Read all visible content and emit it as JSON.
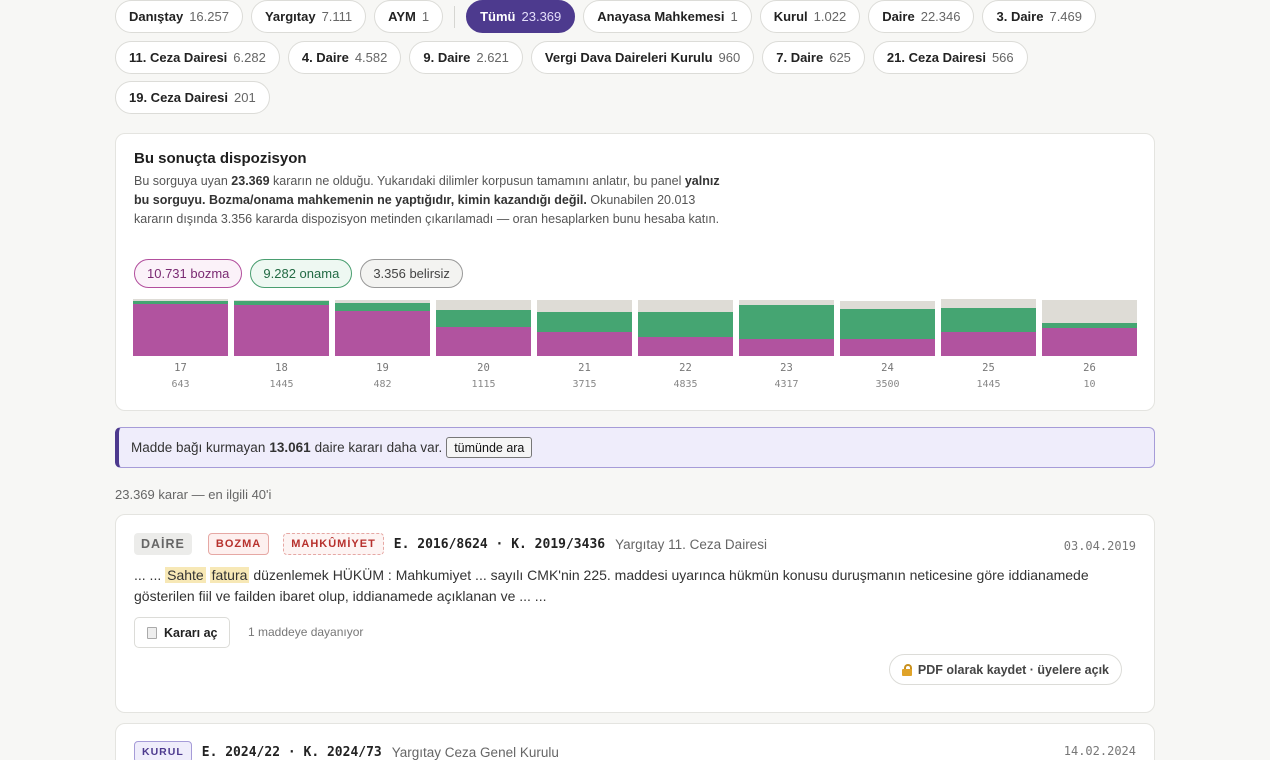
{
  "filters": {
    "row1": [
      {
        "label": "Danıştay",
        "count": "16.257",
        "active": false
      },
      {
        "label": "Yargıtay",
        "count": "7.111",
        "active": false
      },
      {
        "label": "AYM",
        "count": "1",
        "active": false
      },
      {
        "label": "Tümü",
        "count": "23.369",
        "active": true
      },
      {
        "label": "Anayasa Mahkemesi",
        "count": "1",
        "active": false
      },
      {
        "label": "Kurul",
        "count": "1.022",
        "active": false
      },
      {
        "label": "Daire",
        "count": "22.346",
        "active": false
      },
      {
        "label": "3. Daire",
        "count": "7.469",
        "active": false
      }
    ],
    "row2": [
      {
        "label": "11. Ceza Dairesi",
        "count": "6.282"
      },
      {
        "label": "4. Daire",
        "count": "4.582"
      },
      {
        "label": "9. Daire",
        "count": "2.621"
      },
      {
        "label": "Vergi Dava Daireleri Kurulu",
        "count": "960"
      },
      {
        "label": "7. Daire",
        "count": "625"
      },
      {
        "label": "21. Ceza Dairesi",
        "count": "566"
      }
    ],
    "row3": [
      {
        "label": "19. Ceza Dairesi",
        "count": "201"
      }
    ]
  },
  "disposition": {
    "title": "Bu sonuçta dispozisyon",
    "desc_1": "Bu sorguya uyan",
    "desc_count": "23.369",
    "desc_2": "kararın ne olduğu. Yukarıdaki dilimler korpusun tamamını anlatır, bu panel",
    "desc_bold": "yalnız bu sorguyu. Bozma/onama mahkemenin ne yaptığıdır, kimin kazandığı değil.",
    "desc_3": "Okunabilen 20.013 kararın dışında 3.356 kararda dispozisyon metinden çıkarılamadı — oran hesaplarken bunu hesaba katın.",
    "pills": {
      "bozma": "10.731 bozma",
      "onama": "9.282 onama",
      "belirsiz": "3.356 belirsiz"
    },
    "colors": {
      "bozma": "#b1539f",
      "onama": "#45a572",
      "belirsiz": "#dedcd6"
    }
  },
  "chart_data": {
    "type": "bar",
    "stacked": true,
    "normalized": true,
    "categories": [
      "17",
      "18",
      "19",
      "20",
      "21",
      "22",
      "23",
      "24",
      "25",
      "26"
    ],
    "totals": [
      "643",
      "1445",
      "482",
      "1115",
      "3715",
      "4835",
      "4317",
      "3500",
      "1445",
      "10"
    ],
    "series": [
      {
        "name": "bozma",
        "values": [
          0.92,
          0.91,
          0.8,
          0.52,
          0.43,
          0.34,
          0.31,
          0.31,
          0.42,
          0.5
        ]
      },
      {
        "name": "onama",
        "values": [
          0.05,
          0.07,
          0.14,
          0.31,
          0.35,
          0.45,
          0.6,
          0.54,
          0.42,
          0.09
        ]
      },
      {
        "name": "belirsiz",
        "values": [
          0.03,
          0.02,
          0.06,
          0.17,
          0.22,
          0.21,
          0.09,
          0.15,
          0.16,
          0.41
        ]
      }
    ],
    "ylim": [
      0,
      1
    ]
  },
  "notice": {
    "text_1": "Madde bağı kurmayan",
    "count": "13.061",
    "text_2": "daire kararı daha var.",
    "button": "tümünde ara"
  },
  "result_count": "23.369 karar — en ilgili 40'i",
  "cards": [
    {
      "type_tag": "DAİRE",
      "outcome_tag": "BOZMA",
      "result_tag": "MAHKÛMİYET",
      "ek": "E. 2016/8624 · K. 2019/3436",
      "court": "Yargıtay 11. Ceza Dairesi",
      "date": "03.04.2019",
      "snippet_pre": "... ...",
      "hl_1": "Sahte",
      "hl_2": "fatura",
      "snippet_post": "düzenlemek HÜKÜM : Mahkumiyet ... sayılı CMK'nin 225. maddesi uyarınca hükmün konusu duruşmanın neticesine göre iddianamede gösterilen fiil ve failden ibaret olup, iddianamede açıklanan ve ... ...",
      "open_label": "Kararı aç",
      "dependency": "1 maddeye dayanıyor",
      "pdf_label": "PDF olarak kaydet · üyelere açık"
    },
    {
      "type_tag": "KURUL",
      "ek": "E. 2024/22 · K. 2024/73",
      "court": "Yargıtay Ceza Genel Kurulu",
      "date": "14.02.2024"
    }
  ]
}
